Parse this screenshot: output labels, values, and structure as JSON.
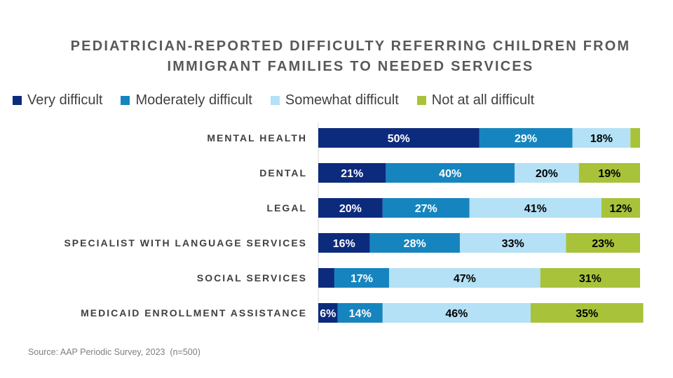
{
  "chart_data": {
    "type": "bar",
    "orientation": "horizontal",
    "stacked": true,
    "title_lines": [
      "PEDIATRICIAN-REPORTED DIFFICULTY REFERRING CHILDREN FROM",
      "IMMIGRANT FAMILIES TO NEEDED SERVICES"
    ],
    "categories": [
      "MENTAL HEALTH",
      "DENTAL",
      "LEGAL",
      "SPECIALIST WITH LANGUAGE SERVICES",
      "SOCIAL SERVICES",
      "MEDICAID ENROLLMENT ASSISTANCE"
    ],
    "series": [
      {
        "name": "Very difficult",
        "color": "#0d2b7d",
        "label_color": "#ffffff",
        "values": [
          50,
          21,
          20,
          16,
          5,
          6
        ],
        "labels": [
          "50%",
          "21%",
          "20%",
          "16%",
          "",
          "6%"
        ]
      },
      {
        "name": "Moderately difficult",
        "color": "#1685bf",
        "label_color": "#ffffff",
        "values": [
          29,
          40,
          27,
          28,
          17,
          14
        ],
        "labels": [
          "29%",
          "40%",
          "27%",
          "28%",
          "17%",
          "14%"
        ]
      },
      {
        "name": "Somewhat difficult",
        "color": "#b4e1f5",
        "label_color": "#000000",
        "values": [
          18,
          20,
          41,
          33,
          47,
          46
        ],
        "labels": [
          "18%",
          "20%",
          "41%",
          "33%",
          "47%",
          "46%"
        ]
      },
      {
        "name": "Not at all difficult",
        "color": "#a8c23a",
        "label_color": "#000000",
        "values": [
          3,
          19,
          12,
          23,
          31,
          35
        ],
        "labels": [
          "",
          "19%",
          "12%",
          "23%",
          "31%",
          "35%"
        ]
      }
    ],
    "legend_position": "top",
    "grid": false,
    "xlim": [
      0,
      100
    ]
  },
  "source": "Source: AAP Periodic Survey, 2023  (n=500)"
}
